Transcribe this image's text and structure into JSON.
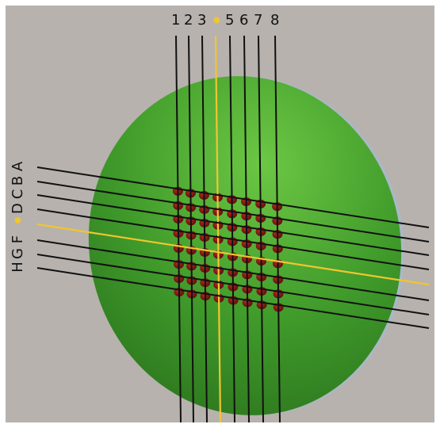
{
  "columns": {
    "labels": [
      "1",
      "2",
      "3",
      "",
      "5",
      "6",
      "7",
      "8"
    ],
    "highlight_index": 3
  },
  "rows": {
    "labels": [
      "A",
      "B",
      "C",
      "D",
      "",
      "F",
      "G",
      "H"
    ],
    "highlight_index": 4
  },
  "colors": {
    "background": "#b7b2ae",
    "disk": "#3f9a2a",
    "disk_light": "#66c23f",
    "disk_dark": "#2a6f1c",
    "line": "#111111",
    "highlight": "#f2c530",
    "spot": "#7a1612"
  }
}
